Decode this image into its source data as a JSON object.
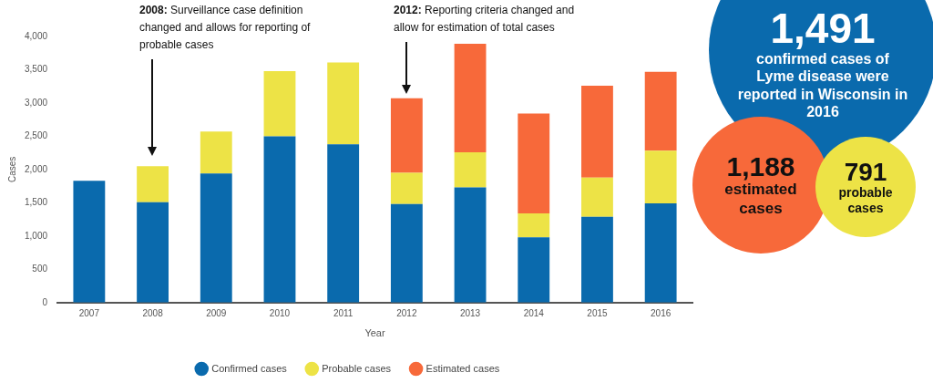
{
  "chart_data": {
    "type": "bar",
    "stacked": true,
    "xlabel": "Year",
    "ylabel": "Cases",
    "categories": [
      "2007",
      "2008",
      "2009",
      "2010",
      "2011",
      "2012",
      "2013",
      "2014",
      "2015",
      "2016"
    ],
    "series": [
      {
        "name": "Confirmed cases",
        "color": "#0a6aad",
        "values": [
          1830,
          1510,
          1940,
          2500,
          2380,
          1480,
          1730,
          980,
          1290,
          1491
        ]
      },
      {
        "name": "Probable cases",
        "color": "#ede346",
        "values": [
          null,
          540,
          630,
          980,
          1230,
          470,
          530,
          360,
          590,
          791
        ]
      },
      {
        "name": "Estimated cases",
        "color": "#f7693a",
        "values": [
          null,
          null,
          null,
          null,
          null,
          1120,
          1630,
          1500,
          1380,
          1188
        ]
      }
    ],
    "ylim": [
      0,
      4000
    ],
    "yticks": [
      {
        "value": 0,
        "label": "0"
      },
      {
        "value": 500,
        "label": "500"
      },
      {
        "value": 1000,
        "label": "1,000"
      },
      {
        "value": 1500,
        "label": "1,500"
      },
      {
        "value": 2000,
        "label": "2,000"
      },
      {
        "value": 2500,
        "label": "2,500"
      },
      {
        "value": 3000,
        "label": "3,000"
      },
      {
        "value": 3500,
        "label": "3,500"
      },
      {
        "value": 4000,
        "label": "4,000"
      }
    ],
    "grid": false,
    "legend": "bottom",
    "annotations": [
      "2008: Surveillance case definition changed and allows for reporting of probable cases",
      "2012: Reporting criteria changed and allow for estimation of total cases",
      "1,491",
      "confirmed cases of Lyme disease were reported in Wisconsin in 2016",
      "1,188",
      "estimated cases",
      "791",
      "probable cases"
    ]
  }
}
